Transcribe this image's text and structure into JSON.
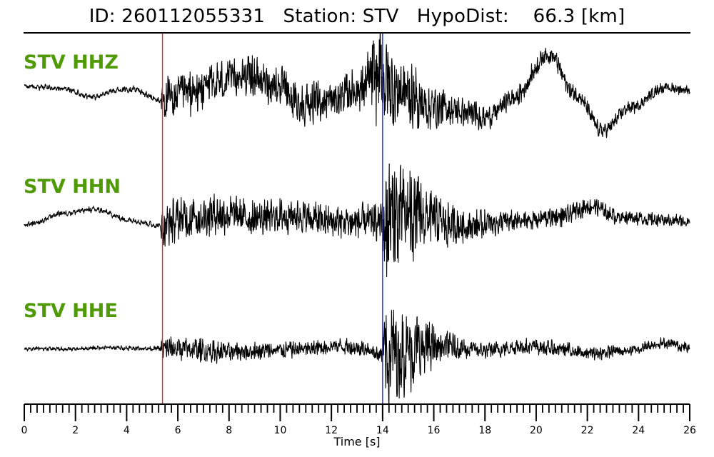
{
  "header": {
    "title": "ID: 260112055331   Station: STV   HypoDist:    66.3 [km]"
  },
  "colors": {
    "label": "#4f9a06",
    "trace": "#000000",
    "p_pick": "#e8282d",
    "s_pick": "#1c2be8"
  },
  "chart_data": {
    "type": "line",
    "title": "ID: 260112055331   Station: STV   HypoDist:    66.3 [km]",
    "xlabel": "Time [s]",
    "ylabel": "",
    "xlim": [
      0,
      26
    ],
    "x_ticks": [
      "0",
      "2",
      "4",
      "6",
      "8",
      "10",
      "12",
      "14",
      "16",
      "18",
      "20",
      "22",
      "24",
      "26"
    ],
    "minor_tick_step": 0.25,
    "picks": [
      {
        "phase": "P",
        "time": 5.4,
        "color": "#e8282d"
      },
      {
        "phase": "S",
        "time": 14.0,
        "color": "#1c2be8"
      }
    ],
    "series": [
      {
        "name": "STV HHZ",
        "envelope": [
          [
            0,
            0.05
          ],
          [
            5.3,
            0.06
          ],
          [
            5.4,
            0.45
          ],
          [
            9,
            0.4
          ],
          [
            13,
            0.4
          ],
          [
            14,
            1.0
          ],
          [
            15,
            0.65
          ],
          [
            17,
            0.3
          ],
          [
            19,
            0.2
          ],
          [
            26,
            0.1
          ]
        ],
        "trend": [
          [
            0,
            0.15
          ],
          [
            0.5,
            0.12
          ],
          [
            1.5,
            0.07
          ],
          [
            2.7,
            -0.15
          ],
          [
            3.7,
            0.05
          ],
          [
            4.2,
            0.07
          ],
          [
            5.3,
            -0.25
          ],
          [
            6.5,
            -0.07
          ],
          [
            7.5,
            0.25
          ],
          [
            8.7,
            0.45
          ],
          [
            9.8,
            0.2
          ],
          [
            10.8,
            -0.35
          ],
          [
            12,
            -0.25
          ],
          [
            13,
            0.05
          ],
          [
            13.9,
            0.4
          ],
          [
            14.4,
            0.1
          ],
          [
            16,
            -0.45
          ],
          [
            18.1,
            -0.7
          ],
          [
            19.1,
            -0.2
          ],
          [
            20.5,
            1.05
          ],
          [
            21.5,
            -0.05
          ],
          [
            22.6,
            -1.1
          ],
          [
            23.7,
            -0.45
          ],
          [
            25,
            0.1
          ],
          [
            26,
            0.05
          ]
        ]
      },
      {
        "name": "STV HHN",
        "envelope": [
          [
            0,
            0.05
          ],
          [
            5.3,
            0.06
          ],
          [
            5.4,
            0.45
          ],
          [
            10,
            0.35
          ],
          [
            13.9,
            0.35
          ],
          [
            14.1,
            1.45
          ],
          [
            15,
            0.95
          ],
          [
            16,
            0.55
          ],
          [
            17.5,
            0.3
          ],
          [
            20,
            0.2
          ],
          [
            26,
            0.12
          ]
        ],
        "trend": [
          [
            0,
            -0.1
          ],
          [
            0.3,
            -0.05
          ],
          [
            1.5,
            0.25
          ],
          [
            2.7,
            0.35
          ],
          [
            4.2,
            0.05
          ],
          [
            5.3,
            -0.1
          ],
          [
            6.5,
            0.15
          ],
          [
            7.5,
            0.25
          ],
          [
            9,
            0.1
          ],
          [
            10.5,
            0.2
          ],
          [
            12,
            0
          ],
          [
            13.9,
            0
          ],
          [
            15,
            0.2
          ],
          [
            17,
            -0.1
          ],
          [
            19,
            0
          ],
          [
            21,
            0.15
          ],
          [
            22.1,
            0.45
          ],
          [
            23.3,
            0.15
          ],
          [
            25,
            0.05
          ],
          [
            26,
            0.02
          ]
        ]
      },
      {
        "name": "STV HHE",
        "envelope": [
          [
            0,
            0.04
          ],
          [
            5.3,
            0.05
          ],
          [
            5.4,
            0.3
          ],
          [
            10,
            0.2
          ],
          [
            13.9,
            0.2
          ],
          [
            14.2,
            1.35
          ],
          [
            15,
            0.95
          ],
          [
            16.5,
            0.35
          ],
          [
            18,
            0.2
          ],
          [
            26,
            0.12
          ]
        ],
        "trend": [
          [
            0,
            0
          ],
          [
            0.5,
            0.02
          ],
          [
            2,
            0
          ],
          [
            3,
            0.05
          ],
          [
            5.3,
            0.02
          ],
          [
            6.5,
            0
          ],
          [
            7.8,
            -0.1
          ],
          [
            9,
            -0.05
          ],
          [
            11,
            0
          ],
          [
            12.2,
            0.12
          ],
          [
            13.1,
            0.05
          ],
          [
            14,
            -0.15
          ],
          [
            16.5,
            0.1
          ],
          [
            18,
            -0.05
          ],
          [
            19.5,
            0.1
          ],
          [
            21,
            0
          ],
          [
            22,
            -0.15
          ],
          [
            23.5,
            -0.05
          ],
          [
            25,
            0.2
          ],
          [
            26,
            0.05
          ]
        ]
      }
    ]
  }
}
